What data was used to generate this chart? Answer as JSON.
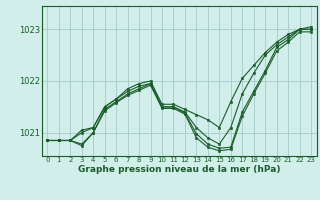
{
  "title": "Graphe pression niveau de la mer (hPa)",
  "bg_color": "#d1eeea",
  "grid_color": "#aacfcf",
  "line_color": "#1a5c2a",
  "xlim": [
    -0.5,
    23.5
  ],
  "ylim": [
    1020.55,
    1023.45
  ],
  "yticks": [
    1021,
    1022,
    1023
  ],
  "xticks": [
    0,
    1,
    2,
    3,
    4,
    5,
    6,
    7,
    8,
    9,
    10,
    11,
    12,
    13,
    14,
    15,
    16,
    17,
    18,
    19,
    20,
    21,
    22,
    23
  ],
  "series": [
    [
      1020.85,
      1020.85,
      1020.85,
      1021.05,
      1021.1,
      1021.5,
      1021.65,
      1021.85,
      1021.95,
      1022.0,
      1021.55,
      1021.55,
      1021.45,
      1021.35,
      1021.25,
      1021.1,
      1021.6,
      1022.05,
      1022.3,
      1022.55,
      1022.75,
      1022.9,
      1023.0,
      1023.05
    ],
    [
      1020.85,
      1020.85,
      1020.85,
      1021.0,
      1021.1,
      1021.5,
      1021.65,
      1021.8,
      1021.9,
      1021.95,
      1021.5,
      1021.5,
      1021.4,
      1021.1,
      1020.9,
      1020.78,
      1021.1,
      1021.75,
      1022.15,
      1022.5,
      1022.7,
      1022.85,
      1023.0,
      1023.0
    ],
    [
      1020.85,
      1020.85,
      1020.85,
      1020.78,
      1021.0,
      1021.45,
      1021.6,
      1021.75,
      1021.85,
      1021.95,
      1021.5,
      1021.5,
      1021.38,
      1020.98,
      1020.78,
      1020.7,
      1020.72,
      1021.4,
      1021.8,
      1022.2,
      1022.65,
      1022.8,
      1023.0,
      1023.0
    ],
    [
      1020.85,
      1020.85,
      1020.85,
      1020.75,
      1021.0,
      1021.42,
      1021.58,
      1021.72,
      1021.82,
      1021.92,
      1021.47,
      1021.47,
      1021.36,
      1020.9,
      1020.72,
      1020.65,
      1020.68,
      1021.32,
      1021.75,
      1022.15,
      1022.58,
      1022.75,
      1022.95,
      1022.95
    ]
  ]
}
